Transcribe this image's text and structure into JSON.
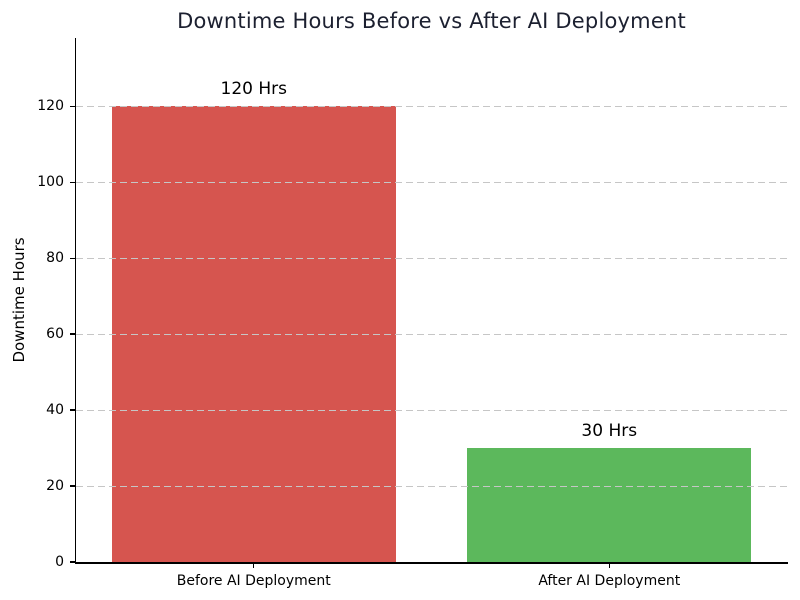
{
  "chart_data": {
    "type": "bar",
    "title": "Downtime Hours Before vs After AI Deployment",
    "xlabel": "",
    "ylabel": "Downtime Hours",
    "categories": [
      "Before AI Deployment",
      "After AI Deployment"
    ],
    "values": [
      120,
      30
    ],
    "bar_labels": [
      "120 Hrs",
      "30 Hrs"
    ],
    "bar_colors": [
      "#d6554f",
      "#5cb85c"
    ],
    "yticks": [
      0,
      20,
      40,
      60,
      80,
      100,
      120
    ],
    "ylim": [
      0,
      138
    ],
    "grid": "horizontal",
    "grid_style": "dashed",
    "gridline_color": "#c6c6c6",
    "gridlines_above_bars": true,
    "legend": "none",
    "background_color": "#ffffff",
    "title_color": "#1c2030",
    "axis_color": "#000000",
    "bar_width_fraction": 0.4,
    "bar_center_fractions": [
      0.25,
      0.75
    ]
  }
}
